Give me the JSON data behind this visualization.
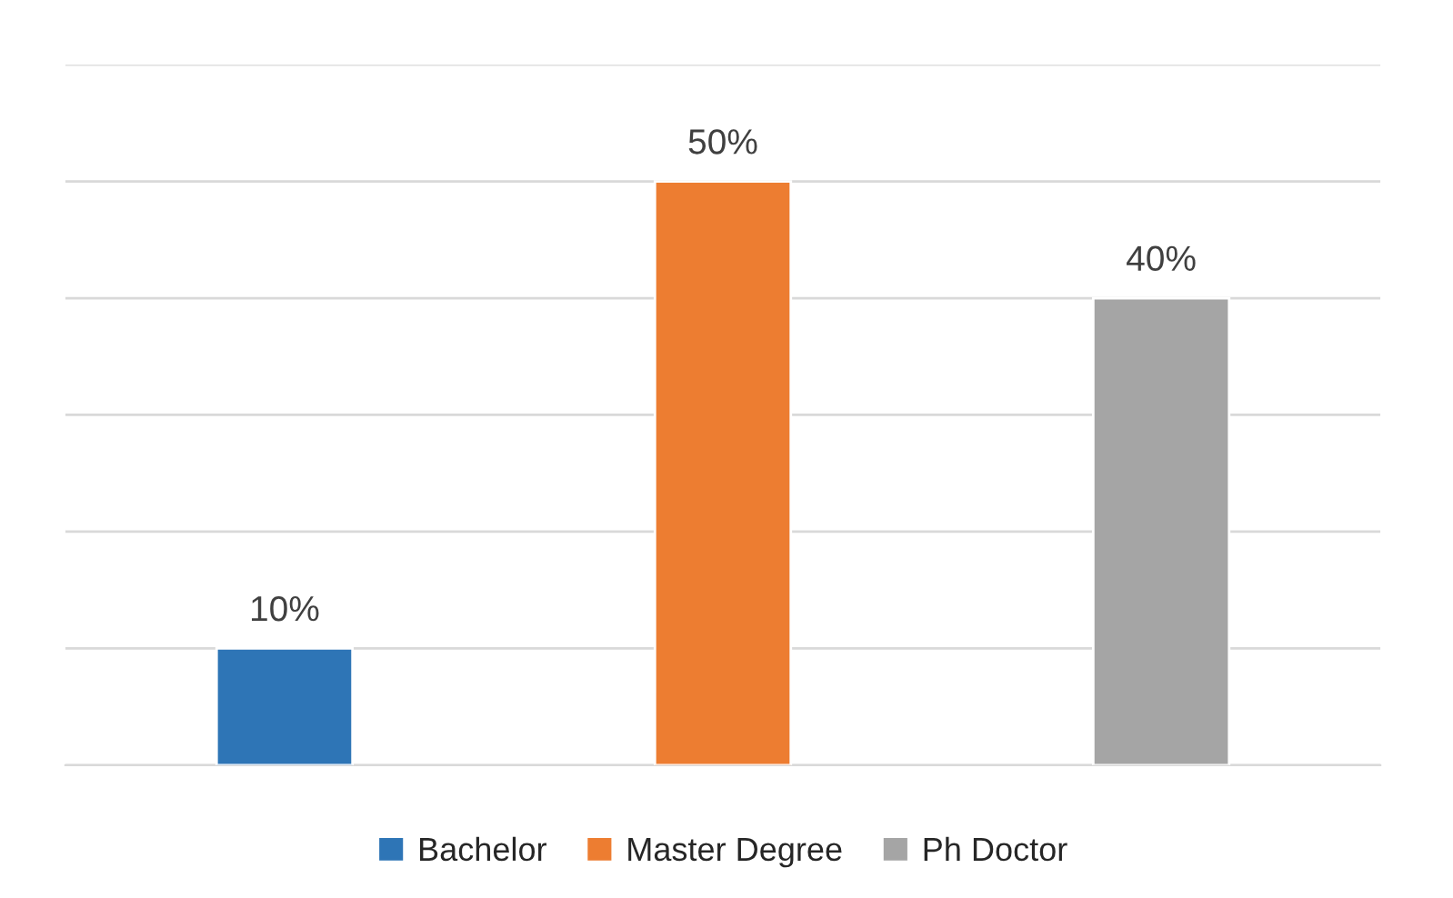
{
  "chart_data": {
    "type": "bar",
    "categories": [
      null,
      null,
      null
    ],
    "stacked": true,
    "series": [
      {
        "name": "Bachelor",
        "color": "#2e75b6",
        "values": [
          10,
          null,
          null
        ],
        "value_labels": [
          "10%",
          null,
          null
        ]
      },
      {
        "name": "Master Degree",
        "color": "#ed7d31",
        "values": [
          null,
          50,
          null
        ],
        "value_labels": [
          null,
          "50%",
          null
        ]
      },
      {
        "name": "Ph Doctor",
        "color": "#a5a5a5",
        "values": [
          null,
          null,
          40
        ],
        "value_labels": [
          null,
          null,
          "40%"
        ]
      }
    ],
    "ylim": [
      0,
      60
    ],
    "yticks": [
      {
        "value": 0,
        "label": null
      },
      {
        "value": 10,
        "label": null
      },
      {
        "value": 20,
        "label": null
      },
      {
        "value": 30,
        "label": null
      },
      {
        "value": 40,
        "label": null
      },
      {
        "value": 50,
        "label": null
      },
      {
        "value": 60,
        "label": null
      }
    ],
    "grid": "y",
    "legend": "bottom"
  }
}
